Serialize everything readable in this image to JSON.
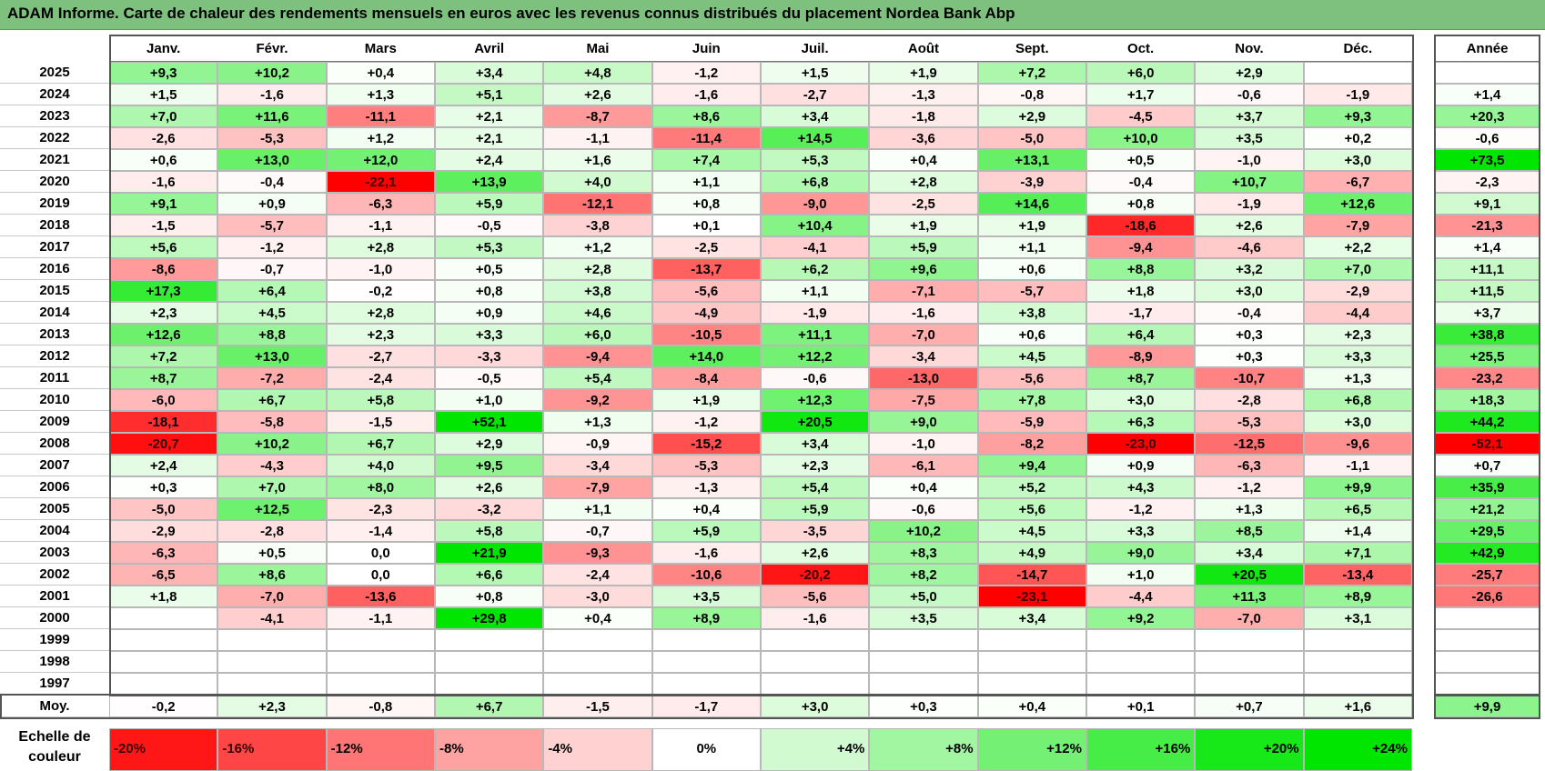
{
  "title": "ADAM Informe. Carte de chaleur des rendements mensuels en euros avec les revenus connus distribués du placement Nordea Bank Abp",
  "colors": {
    "title_bg": "#7ec17e",
    "negative_max": "#ff0000",
    "neutral": "#ffffff",
    "positive_max": "#00e000"
  },
  "chart_data": {
    "type": "heatmap",
    "title": "ADAM Informe. Carte de chaleur des rendements mensuels en euros avec les revenus connus distribués du placement Nordea Bank Abp",
    "columns": [
      "Janv.",
      "Févr.",
      "Mars",
      "Avril",
      "Mai",
      "Juin",
      "Juil.",
      "Août",
      "Sept.",
      "Oct.",
      "Nov.",
      "Déc."
    ],
    "year_column_label": "Année",
    "rows": [
      {
        "year": "2025",
        "values": [
          "+9,3",
          "+10,2",
          "+0,4",
          "+3,4",
          "+4,8",
          "-1,2",
          "+1,5",
          "+1,9",
          "+7,2",
          "+6,0",
          "+2,9",
          ""
        ],
        "annual": ""
      },
      {
        "year": "2024",
        "values": [
          "+1,5",
          "-1,6",
          "+1,3",
          "+5,1",
          "+2,6",
          "-1,6",
          "-2,7",
          "-1,3",
          "-0,8",
          "+1,7",
          "-0,6",
          "-1,9"
        ],
        "annual": "+1,4"
      },
      {
        "year": "2023",
        "values": [
          "+7,0",
          "+11,6",
          "-11,1",
          "+2,1",
          "-8,7",
          "+8,6",
          "+3,4",
          "-1,8",
          "+2,9",
          "-4,5",
          "+3,7",
          "+9,3"
        ],
        "annual": "+20,3"
      },
      {
        "year": "2022",
        "values": [
          "-2,6",
          "-5,3",
          "+1,2",
          "+2,1",
          "-1,1",
          "-11,4",
          "+14,5",
          "-3,6",
          "-5,0",
          "+10,0",
          "+3,5",
          "+0,2"
        ],
        "annual": "-0,6"
      },
      {
        "year": "2021",
        "values": [
          "+0,6",
          "+13,0",
          "+12,0",
          "+2,4",
          "+1,6",
          "+7,4",
          "+5,3",
          "+0,4",
          "+13,1",
          "+0,5",
          "-1,0",
          "+3,0"
        ],
        "annual": "+73,5"
      },
      {
        "year": "2020",
        "values": [
          "-1,6",
          "-0,4",
          "-22,1",
          "+13,9",
          "+4,0",
          "+1,1",
          "+6,8",
          "+2,8",
          "-3,9",
          "-0,4",
          "+10,7",
          "-6,7"
        ],
        "annual": "-2,3"
      },
      {
        "year": "2019",
        "values": [
          "+9,1",
          "+0,9",
          "-6,3",
          "+5,9",
          "-12,1",
          "+0,8",
          "-9,0",
          "-2,5",
          "+14,6",
          "+0,8",
          "-1,9",
          "+12,6"
        ],
        "annual": "+9,1"
      },
      {
        "year": "2018",
        "values": [
          "-1,5",
          "-5,7",
          "-1,1",
          "-0,5",
          "-3,8",
          "+0,1",
          "+10,4",
          "+1,9",
          "+1,9",
          "-18,6",
          "+2,6",
          "-7,9"
        ],
        "annual": "-21,3"
      },
      {
        "year": "2017",
        "values": [
          "+5,6",
          "-1,2",
          "+2,8",
          "+5,3",
          "+1,2",
          "-2,5",
          "-4,1",
          "+5,9",
          "+1,1",
          "-9,4",
          "-4,6",
          "+2,2"
        ],
        "annual": "+1,4"
      },
      {
        "year": "2016",
        "values": [
          "-8,6",
          "-0,7",
          "-1,0",
          "+0,5",
          "+2,8",
          "-13,7",
          "+6,2",
          "+9,6",
          "+0,6",
          "+8,8",
          "+3,2",
          "+7,0"
        ],
        "annual": "+11,1"
      },
      {
        "year": "2015",
        "values": [
          "+17,3",
          "+6,4",
          "-0,2",
          "+0,8",
          "+3,8",
          "-5,6",
          "+1,1",
          "-7,1",
          "-5,7",
          "+1,8",
          "+3,0",
          "-2,9"
        ],
        "annual": "+11,5"
      },
      {
        "year": "2014",
        "values": [
          "+2,3",
          "+4,5",
          "+2,8",
          "+0,9",
          "+4,6",
          "-4,9",
          "-1,9",
          "-1,6",
          "+3,8",
          "-1,7",
          "-0,4",
          "-4,4"
        ],
        "annual": "+3,7"
      },
      {
        "year": "2013",
        "values": [
          "+12,6",
          "+8,8",
          "+2,3",
          "+3,3",
          "+6,0",
          "-10,5",
          "+11,1",
          "-7,0",
          "+0,6",
          "+6,4",
          "+0,3",
          "+2,3"
        ],
        "annual": "+38,8"
      },
      {
        "year": "2012",
        "values": [
          "+7,2",
          "+13,0",
          "-2,7",
          "-3,3",
          "-9,4",
          "+14,0",
          "+12,2",
          "-3,4",
          "+4,5",
          "-8,9",
          "+0,3",
          "+3,3"
        ],
        "annual": "+25,5"
      },
      {
        "year": "2011",
        "values": [
          "+8,7",
          "-7,2",
          "-2,4",
          "-0,5",
          "+5,4",
          "-8,4",
          "-0,6",
          "-13,0",
          "-5,6",
          "+8,7",
          "-10,7",
          "+1,3"
        ],
        "annual": "-23,2"
      },
      {
        "year": "2010",
        "values": [
          "-6,0",
          "+6,7",
          "+5,8",
          "+1,0",
          "-9,2",
          "+1,9",
          "+12,3",
          "-7,5",
          "+7,8",
          "+3,0",
          "-2,8",
          "+6,8"
        ],
        "annual": "+18,3"
      },
      {
        "year": "2009",
        "values": [
          "-18,1",
          "-5,8",
          "-1,5",
          "+52,1",
          "+1,3",
          "-1,2",
          "+20,5",
          "+9,0",
          "-5,9",
          "+6,3",
          "-5,3",
          "+3,0"
        ],
        "annual": "+44,2"
      },
      {
        "year": "2008",
        "values": [
          "-20,7",
          "+10,2",
          "+6,7",
          "+2,9",
          "-0,9",
          "-15,2",
          "+3,4",
          "-1,0",
          "-8,2",
          "-23,0",
          "-12,5",
          "-9,6"
        ],
        "annual": "-52,1"
      },
      {
        "year": "2007",
        "values": [
          "+2,4",
          "-4,3",
          "+4,0",
          "+9,5",
          "-3,4",
          "-5,3",
          "+2,3",
          "-6,1",
          "+9,4",
          "+0,9",
          "-6,3",
          "-1,1"
        ],
        "annual": "+0,7"
      },
      {
        "year": "2006",
        "values": [
          "+0,3",
          "+7,0",
          "+8,0",
          "+2,6",
          "-7,9",
          "-1,3",
          "+5,4",
          "+0,4",
          "+5,2",
          "+4,3",
          "-1,2",
          "+9,9"
        ],
        "annual": "+35,9"
      },
      {
        "year": "2005",
        "values": [
          "-5,0",
          "+12,5",
          "-2,3",
          "-3,2",
          "+1,1",
          "+0,4",
          "+5,9",
          "-0,6",
          "+5,6",
          "-1,2",
          "+1,3",
          "+6,5"
        ],
        "annual": "+21,2"
      },
      {
        "year": "2004",
        "values": [
          "-2,9",
          "-2,8",
          "-1,4",
          "+5,8",
          "-0,7",
          "+5,9",
          "-3,5",
          "+10,2",
          "+4,5",
          "+3,3",
          "+8,5",
          "+1,4"
        ],
        "annual": "+29,5"
      },
      {
        "year": "2003",
        "values": [
          "-6,3",
          "+0,5",
          "0,0",
          "+21,9",
          "-9,3",
          "-1,6",
          "+2,6",
          "+8,3",
          "+4,9",
          "+9,0",
          "+3,4",
          "+7,1"
        ],
        "annual": "+42,9"
      },
      {
        "year": "2002",
        "values": [
          "-6,5",
          "+8,6",
          "0,0",
          "+6,6",
          "-2,4",
          "-10,6",
          "-20,2",
          "+8,2",
          "-14,7",
          "+1,0",
          "+20,5",
          "-13,4"
        ],
        "annual": "-25,7"
      },
      {
        "year": "2001",
        "values": [
          "+1,8",
          "-7,0",
          "-13,6",
          "+0,8",
          "-3,0",
          "+3,5",
          "-5,6",
          "+5,0",
          "-23,1",
          "-4,4",
          "+11,3",
          "+8,9"
        ],
        "annual": "-26,6"
      },
      {
        "year": "2000",
        "values": [
          "",
          "-4,1",
          "-1,1",
          "+29,8",
          "+0,4",
          "+8,9",
          "-1,6",
          "+3,5",
          "+3,4",
          "+9,2",
          "-7,0",
          "+3,1"
        ],
        "annual": ""
      },
      {
        "year": "1999",
        "values": [
          "",
          "",
          "",
          "",
          "",
          "",
          "",
          "",
          "",
          "",
          "",
          ""
        ],
        "annual": ""
      },
      {
        "year": "1998",
        "values": [
          "",
          "",
          "",
          "",
          "",
          "",
          "",
          "",
          "",
          "",
          "",
          ""
        ],
        "annual": ""
      },
      {
        "year": "1997",
        "values": [
          "",
          "",
          "",
          "",
          "",
          "",
          "",
          "",
          "",
          "",
          "",
          ""
        ],
        "annual": ""
      }
    ],
    "average": {
      "label": "Moy.",
      "values": [
        "-0,2",
        "+2,3",
        "-0,8",
        "+6,7",
        "-1,5",
        "-1,7",
        "+3,0",
        "+0,3",
        "+0,4",
        "+0,1",
        "+0,7",
        "+1,6"
      ],
      "annual": "+9,9"
    },
    "scale": {
      "label_line1": "Echelle de",
      "label_line2": "couleur",
      "steps": [
        {
          "label": "-20%",
          "value": -20
        },
        {
          "label": "-16%",
          "value": -16
        },
        {
          "label": "-12%",
          "value": -12
        },
        {
          "label": "-8%",
          "value": -8
        },
        {
          "label": "-4%",
          "value": -4
        },
        {
          "label": "0%",
          "value": 0
        },
        {
          "label": "+4%",
          "value": 4
        },
        {
          "label": "+8%",
          "value": 8
        },
        {
          "label": "+12%",
          "value": 12
        },
        {
          "label": "+16%",
          "value": 16
        },
        {
          "label": "+20%",
          "value": 20
        },
        {
          "label": "+24%",
          "value": 24
        }
      ]
    }
  }
}
